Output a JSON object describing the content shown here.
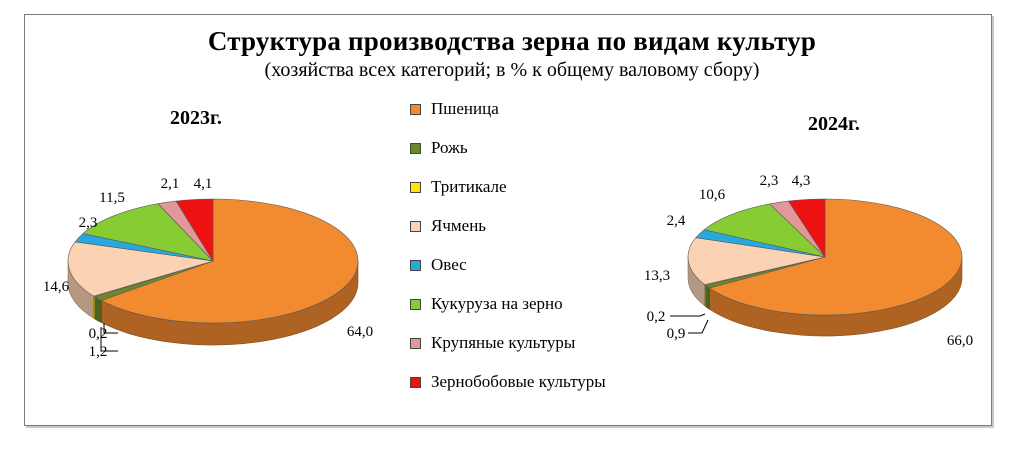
{
  "chart_data": {
    "type": "pie",
    "title": "Структура производства зерна по видам культур",
    "subtitle": "(хозяйства всех категорий; в % к общему валовому сбору)",
    "categories": [
      "Пшеница",
      "Рожь",
      "Тритикале",
      "Ячмень",
      "Овес",
      "Кукуруза на зерно",
      "Крупяные культуры",
      "Зернобобовые культуры"
    ],
    "colors": [
      "#f28a30",
      "#6a8a2a",
      "#ffe600",
      "#fbd3b4",
      "#29a8e0",
      "#88cc33",
      "#e2979a",
      "#ee1111"
    ],
    "series": [
      {
        "name": "2023г.",
        "values": [
          64.0,
          1.2,
          0.2,
          14.6,
          2.3,
          11.5,
          2.1,
          4.1
        ],
        "labels": [
          "64,0",
          "1,2",
          "0,2",
          "14,6",
          "2,3",
          "11,5",
          "2,1",
          "4,1"
        ]
      },
      {
        "name": "2024г.",
        "values": [
          66.0,
          0.9,
          0.2,
          13.3,
          2.4,
          10.6,
          2.3,
          4.3
        ],
        "labels": [
          "66,0",
          "0,9",
          "0,2",
          "13,3",
          "2,4",
          "10,6",
          "2,3",
          "4,3"
        ]
      }
    ],
    "legend_position": "center"
  }
}
